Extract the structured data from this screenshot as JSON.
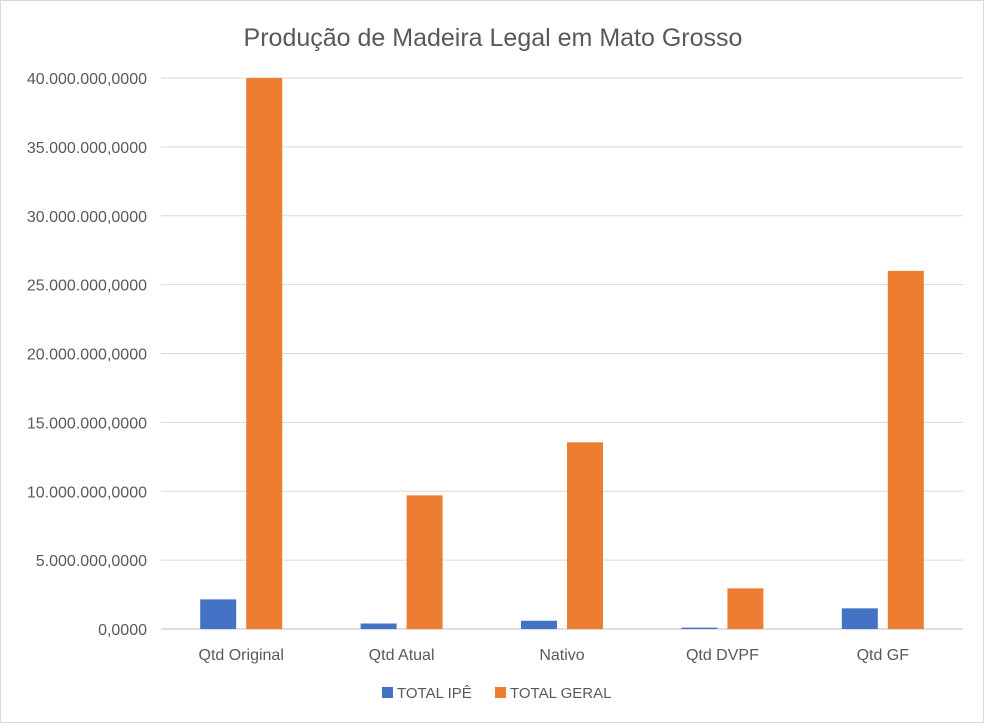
{
  "chart_data": {
    "type": "bar",
    "title": "Produção de Madeira Legal em Mato Grosso",
    "categories": [
      "Qtd Original",
      "Qtd Atual",
      "Nativo",
      "Qtd DVPF",
      "Qtd GF"
    ],
    "series": [
      {
        "name": "TOTAL IPÊ",
        "color": "#4472c4",
        "values": [
          2150000000,
          400000000,
          600000000,
          100000000,
          1500000000
        ]
      },
      {
        "name": "TOTAL GERAL",
        "color": "#ed7d31",
        "values": [
          40000000000,
          9700000000,
          13550000000,
          2950000000,
          26000000000
        ]
      }
    ],
    "ylim": [
      0,
      40000000000
    ],
    "yticks": [
      0,
      5000000000,
      10000000000,
      15000000000,
      20000000000,
      25000000000,
      30000000000,
      35000000000,
      40000000000
    ],
    "ytick_labels": [
      "0,0000",
      "5.000.000,0000",
      "10.000.000,0000",
      "15.000.000,0000",
      "20.000.000,0000",
      "25.000.000,0000",
      "30.000.000,0000",
      "35.000.000,0000",
      "40.000.000,0000"
    ],
    "grid": true,
    "legend_position": "bottom"
  }
}
